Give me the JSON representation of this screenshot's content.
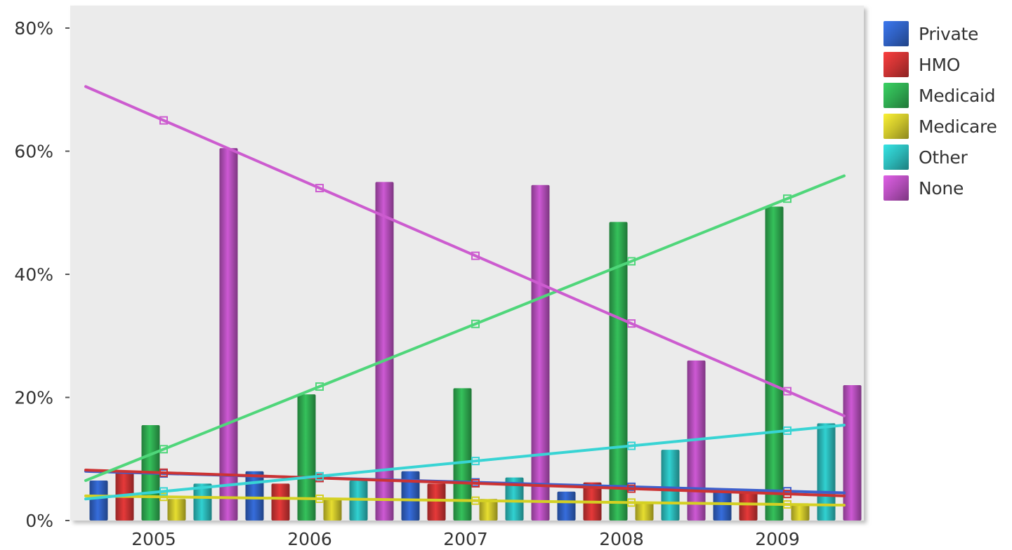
{
  "chart_data": {
    "type": "bar",
    "categories": [
      "2005",
      "2006",
      "2007",
      "2008",
      "2009"
    ],
    "ylim": [
      0,
      80
    ],
    "y_ticks": [
      "0%",
      "20%",
      "40%",
      "60%",
      "80%"
    ],
    "y_tick_values": [
      0,
      20,
      40,
      60,
      80
    ],
    "y_unit": "%",
    "grid": false,
    "legend_position": "right",
    "trendlines": true,
    "series": [
      {
        "name": "Private",
        "color": "#2f5fbf",
        "values": [
          6.5,
          8.0,
          8.0,
          4.7,
          4.7
        ],
        "trend": [
          8.0,
          4.5
        ]
      },
      {
        "name": "HMO",
        "color": "#c83232",
        "values": [
          8.0,
          6.0,
          6.0,
          6.2,
          4.8
        ],
        "trend": [
          8.2,
          4.0
        ]
      },
      {
        "name": "Medicaid",
        "color": "#2ea84f",
        "values": [
          15.5,
          20.5,
          21.5,
          48.5,
          51.0
        ],
        "trend": [
          6.5,
          56.0
        ]
      },
      {
        "name": "Medicare",
        "color": "#c9c12a",
        "values": [
          3.5,
          3.5,
          3.5,
          3.0,
          2.8
        ],
        "trend": [
          4.0,
          2.5
        ]
      },
      {
        "name": "Other",
        "color": "#2bb6b6",
        "values": [
          6.0,
          6.5,
          7.0,
          11.5,
          15.8
        ],
        "trend": [
          3.5,
          15.5
        ]
      },
      {
        "name": "None",
        "color": "#b24db8",
        "values": [
          60.5,
          55.0,
          54.5,
          26.0,
          22.0
        ],
        "trend": [
          70.5,
          17.0
        ]
      }
    ],
    "trend_colors": {
      "Private": "#3d5fcc",
      "HMO": "#cc3333",
      "Medicaid": "#4fd67a",
      "Medicare": "#d4d023",
      "Other": "#38d4d4",
      "None": "#cc5ccf"
    }
  }
}
